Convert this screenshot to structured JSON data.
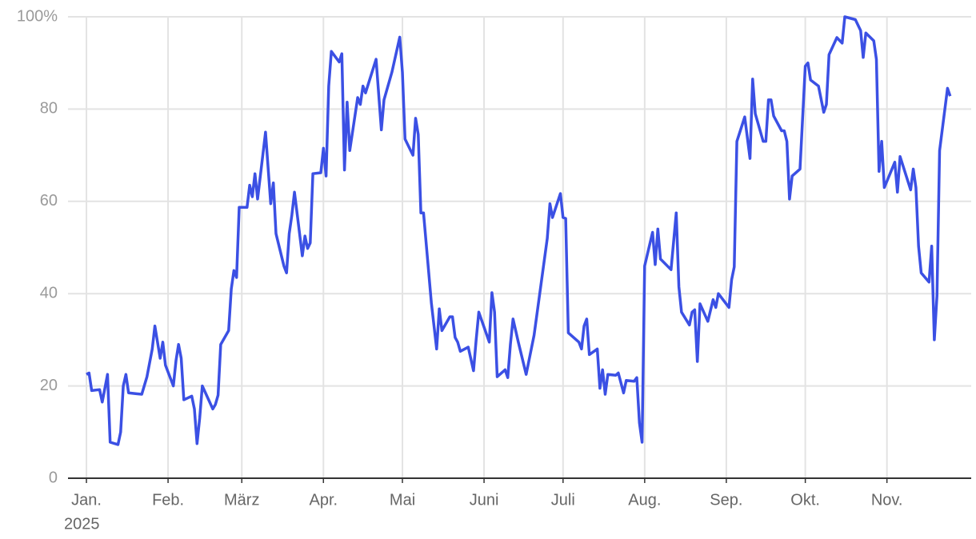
{
  "chart_data": {
    "type": "line",
    "color": "#3b50e4",
    "grid": true,
    "x": [
      0,
      1,
      2,
      5,
      6,
      8,
      9,
      12,
      13,
      14,
      15,
      16,
      19,
      21,
      23,
      25,
      26,
      28,
      29,
      30,
      33,
      34,
      35,
      36,
      37,
      40,
      41,
      42,
      43,
      44,
      48,
      49,
      50,
      51,
      54,
      55,
      56,
      57,
      58,
      61,
      62,
      63,
      64,
      65,
      68,
      70,
      71,
      72,
      75,
      76,
      77,
      78,
      79,
      82,
      83,
      84,
      85,
      86,
      89,
      90,
      91,
      92,
      93,
      96,
      97,
      98,
      99,
      100,
      103,
      104,
      105,
      106,
      110,
      112,
      113,
      116,
      119,
      120,
      121,
      124,
      125,
      126,
      127,
      128,
      131,
      133,
      134,
      135,
      138,
      139,
      140,
      141,
      142,
      145,
      147,
      148,
      149,
      153,
      154,
      155,
      156,
      159,
      160,
      161,
      162,
      164,
      167,
      170,
      175,
      176,
      177,
      180,
      181,
      182,
      183,
      187,
      188,
      189,
      190,
      191,
      194,
      195,
      196,
      197,
      198,
      201,
      202,
      204,
      205,
      208,
      209,
      210,
      211,
      212,
      215,
      216,
      217,
      218,
      222,
      224,
      225,
      226,
      229,
      230,
      231,
      232,
      233,
      236,
      238,
      239,
      240,
      244,
      245,
      246,
      247,
      250,
      252,
      253,
      254,
      257,
      258,
      259,
      260,
      261,
      264,
      265,
      266,
      267,
      268,
      271,
      273,
      274,
      275,
      278,
      280,
      281,
      282,
      285,
      287,
      288,
      292,
      294,
      295,
      296,
      299,
      300,
      301,
      302,
      303,
      307,
      308,
      309,
      313,
      314,
      315,
      316,
      317,
      320,
      321,
      322,
      323,
      324,
      327,
      328
    ],
    "values": [
      22.5,
      22.8,
      19,
      19.2,
      16.5,
      22.5,
      7.8,
      7.3,
      10,
      20,
      22.5,
      18.5,
      18.3,
      18.2,
      22,
      28,
      33,
      26,
      29.5,
      24.5,
      20,
      25.5,
      29,
      26,
      17,
      17.8,
      15,
      7.5,
      13,
      20,
      15,
      16,
      18,
      29,
      32,
      41,
      45,
      43.5,
      58.7,
      58.7,
      63.5,
      61,
      66,
      60.5,
      75,
      59.5,
      64,
      53,
      46,
      44.5,
      53,
      57,
      62,
      48.2,
      52.5,
      49.8,
      51,
      66,
      66.2,
      71.5,
      65.5,
      85,
      92.5,
      90.2,
      92,
      66.8,
      81.5,
      71,
      82.5,
      81,
      85,
      83.5,
      90.8,
      75.5,
      82,
      88,
      95.6,
      88,
      73.5,
      70,
      78,
      74.5,
      57.5,
      57.5,
      38,
      28,
      36.7,
      32,
      35,
      35,
      30.5,
      29.5,
      27.5,
      28.4,
      23.3,
      30,
      36,
      29.5,
      40.2,
      36,
      22,
      23.5,
      21.8,
      29,
      34.5,
      29.5,
      22.5,
      31,
      52,
      59.5,
      56.5,
      61.7,
      56.5,
      56.3,
      31.5,
      29.5,
      28,
      33,
      34.5,
      26.8,
      28,
      19.5,
      23.5,
      18.2,
      22.5,
      22.3,
      22.8,
      18.5,
      21.2,
      21,
      21.8,
      12,
      7.8,
      46,
      53.3,
      46.3,
      54,
      47.5,
      45.2,
      57.5,
      41.5,
      36,
      33.2,
      36,
      36.5,
      25.3,
      37.8,
      34,
      38.7,
      37,
      40,
      37,
      43,
      45.8,
      73,
      78.3,
      69.3,
      86.5,
      79,
      73,
      73,
      82,
      82,
      78.5,
      75.3,
      75.3,
      73,
      60.5,
      65.5,
      67,
      89.3,
      90,
      86.3,
      85,
      79.3,
      81,
      91.8,
      95.5,
      94.3,
      100,
      99.4,
      97,
      91.2,
      96.5,
      94.8,
      90.8,
      66.5,
      73,
      63,
      68.5,
      62,
      69.7,
      62.5,
      67,
      63,
      50.3,
      44.5,
      42.5,
      50.3,
      30,
      39.5,
      71,
      84.5,
      82.8
    ],
    "xlim": [
      -7,
      336
    ],
    "xticks": [
      {
        "value": 0,
        "label": "Jan."
      },
      {
        "value": 31,
        "label": "Feb."
      },
      {
        "value": 59,
        "label": "März"
      },
      {
        "value": 90,
        "label": "Apr."
      },
      {
        "value": 120,
        "label": "Mai"
      },
      {
        "value": 151,
        "label": "Juni"
      },
      {
        "value": 181,
        "label": "Juli"
      },
      {
        "value": 212,
        "label": "Aug."
      },
      {
        "value": 243,
        "label": "Sep."
      },
      {
        "value": 273,
        "label": "Okt."
      },
      {
        "value": 304,
        "label": "Nov."
      }
    ],
    "year_label": "2025",
    "ylim": [
      0,
      100
    ],
    "yticks": [
      0,
      20,
      40,
      60,
      80,
      {
        "value": 100,
        "label": "100%"
      }
    ]
  }
}
